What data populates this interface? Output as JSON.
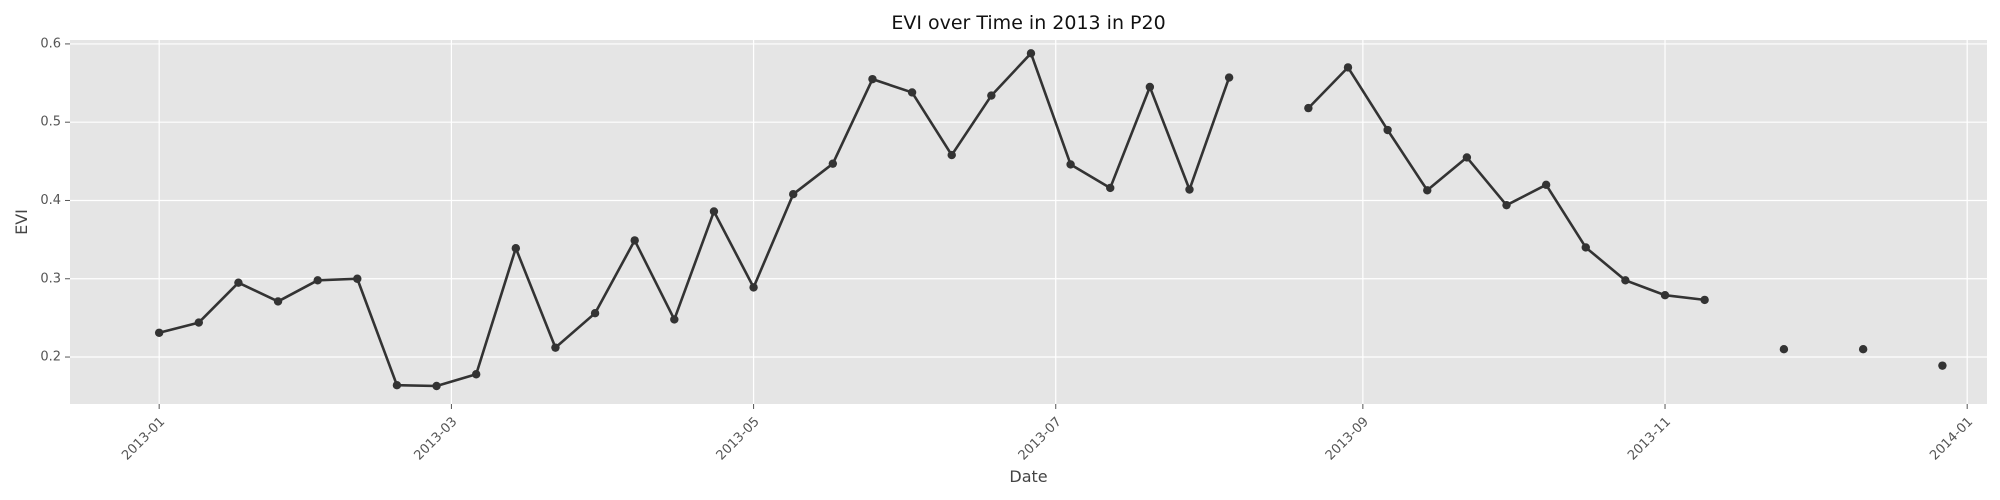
{
  "chart_data": {
    "type": "line",
    "title": "EVI over Time in 2013 in P20",
    "xlabel": "Date",
    "ylabel": "EVI",
    "x_range": [
      "2012-12-14",
      "2014-01-05"
    ],
    "ylim": [
      0.14,
      0.605
    ],
    "grid": true,
    "background": "#e5e5e5",
    "line_color": "#333333",
    "x_ticks": [
      "2013-01",
      "2013-03",
      "2013-05",
      "2013-07",
      "2013-09",
      "2013-11",
      "2014-01"
    ],
    "y_ticks": [
      "0.2",
      "0.3",
      "0.4",
      "0.5",
      "0.6"
    ],
    "series": [
      {
        "points": [
          {
            "date": "2013-01-01",
            "value": 0.231
          },
          {
            "date": "2013-01-09",
            "value": 0.244
          },
          {
            "date": "2013-01-17",
            "value": 0.295
          },
          {
            "date": "2013-01-25",
            "value": 0.271
          },
          {
            "date": "2013-02-02",
            "value": 0.298
          },
          {
            "date": "2013-02-10",
            "value": 0.3
          },
          {
            "date": "2013-02-18",
            "value": 0.164
          },
          {
            "date": "2013-02-26",
            "value": 0.163
          },
          {
            "date": "2013-03-06",
            "value": 0.178
          },
          {
            "date": "2013-03-14",
            "value": 0.339
          },
          {
            "date": "2013-03-22",
            "value": 0.212
          },
          {
            "date": "2013-03-30",
            "value": 0.256
          },
          {
            "date": "2013-04-07",
            "value": 0.349
          },
          {
            "date": "2013-04-15",
            "value": 0.248
          },
          {
            "date": "2013-04-23",
            "value": 0.386
          },
          {
            "date": "2013-05-01",
            "value": 0.289
          },
          {
            "date": "2013-05-09",
            "value": 0.408
          },
          {
            "date": "2013-05-17",
            "value": 0.447
          },
          {
            "date": "2013-05-25",
            "value": 0.555
          },
          {
            "date": "2013-06-02",
            "value": 0.538
          },
          {
            "date": "2013-06-10",
            "value": 0.458
          },
          {
            "date": "2013-06-18",
            "value": 0.534
          },
          {
            "date": "2013-06-26",
            "value": 0.588
          },
          {
            "date": "2013-07-04",
            "value": 0.446
          },
          {
            "date": "2013-07-12",
            "value": 0.416
          },
          {
            "date": "2013-07-20",
            "value": 0.545
          },
          {
            "date": "2013-07-28",
            "value": 0.414
          },
          {
            "date": "2013-08-05",
            "value": 0.557
          },
          {
            "date": "2013-08-13",
            "value": null
          },
          {
            "date": "2013-08-21",
            "value": 0.518
          },
          {
            "date": "2013-08-29",
            "value": 0.57
          },
          {
            "date": "2013-09-06",
            "value": 0.49
          },
          {
            "date": "2013-09-14",
            "value": 0.413
          },
          {
            "date": "2013-09-22",
            "value": 0.455
          },
          {
            "date": "2013-09-30",
            "value": 0.394
          },
          {
            "date": "2013-10-08",
            "value": 0.42
          },
          {
            "date": "2013-10-16",
            "value": 0.34
          },
          {
            "date": "2013-10-24",
            "value": 0.298
          },
          {
            "date": "2013-11-01",
            "value": 0.279
          },
          {
            "date": "2013-11-09",
            "value": 0.273
          },
          {
            "date": "2013-11-17",
            "value": null
          },
          {
            "date": "2013-11-25",
            "value": 0.21
          },
          {
            "date": "2013-12-03",
            "value": null
          },
          {
            "date": "2013-12-11",
            "value": 0.21
          },
          {
            "date": "2013-12-19",
            "value": null
          },
          {
            "date": "2013-12-27",
            "value": 0.189
          }
        ]
      }
    ]
  }
}
